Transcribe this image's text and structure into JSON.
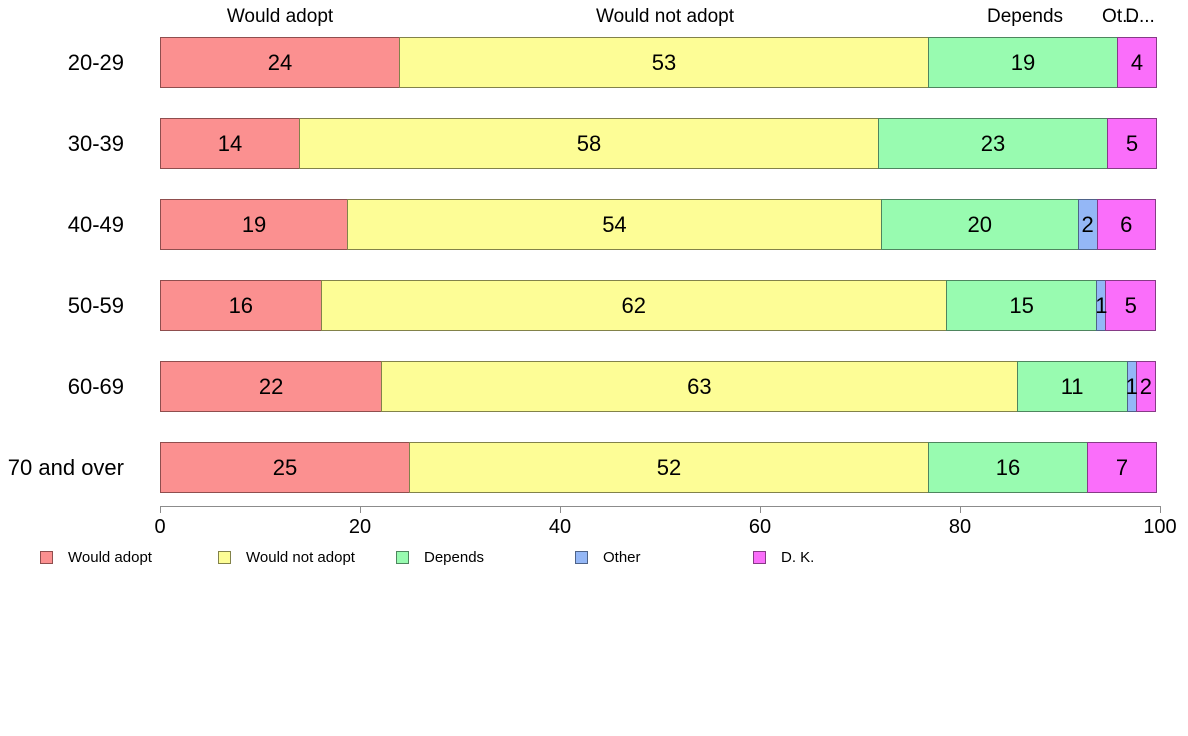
{
  "chart_data": {
    "type": "bar",
    "orientation": "horizontal",
    "stacked": true,
    "title": "",
    "xlabel": "",
    "ylabel": "",
    "xlim": [
      0,
      100
    ],
    "x_ticks": [
      0,
      20,
      40,
      60,
      80,
      100
    ],
    "grid": false,
    "legend_position": "bottom",
    "categories": [
      "20-29",
      "30-39",
      "40-49",
      "50-59",
      "60-69",
      "70 and over"
    ],
    "series": [
      {
        "name": "Would adopt",
        "color": "#FB9090",
        "border_color": "#8F4E4E",
        "values": [
          24,
          14,
          19,
          16,
          22,
          25
        ]
      },
      {
        "name": "Would not adopt",
        "color": "#FDFD96",
        "border_color": "#82824A",
        "values": [
          53,
          58,
          54,
          62,
          63,
          52
        ]
      },
      {
        "name": "Depends",
        "color": "#98FBB0",
        "border_color": "#4E855E",
        "values": [
          19,
          23,
          20,
          15,
          11,
          16
        ]
      },
      {
        "name": "Other",
        "color": "#94B7F6",
        "border_color": "#4E6388",
        "values": [
          0,
          0,
          2,
          1,
          1,
          0
        ]
      },
      {
        "name": "D. K.",
        "color": "#FA6EFA",
        "border_color": "#863B86",
        "values": [
          4,
          5,
          6,
          5,
          2,
          7
        ]
      }
    ],
    "column_headers": [
      "Would adopt",
      "Would not adopt",
      "Depends",
      "Ot...",
      "D..."
    ],
    "legend_labels": [
      "Would adopt",
      "Would not adopt",
      "Depends",
      "Other",
      "D. K."
    ],
    "axis_color": "#8c8c8c",
    "text_color": "#000000"
  }
}
